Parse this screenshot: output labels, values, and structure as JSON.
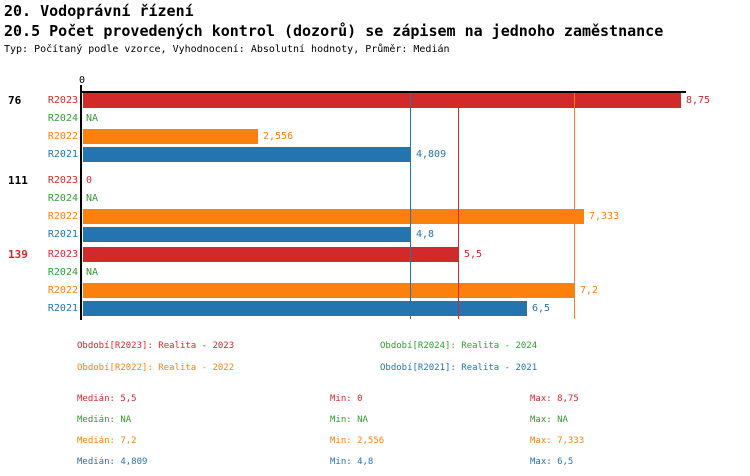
{
  "header": {
    "title": "20. Vodoprávní řízení",
    "subtitle": "20.5 Počet provedených kontrol (dozorů) se zápisem na jednoho zaměstnance",
    "meta": "Typ: Počítaný podle vzorce, Vyhodnocení: Absolutní hodnoty, Průměr: Medián"
  },
  "colors": {
    "r2023": "#d2292b",
    "r2024": "#2e9e2e",
    "r2022": "#fc800e",
    "r2021": "#2474b0",
    "axis": "#000000",
    "group_label_default": "#000000",
    "group_label_highlight": "#d2292b"
  },
  "chart_data": {
    "type": "bar",
    "orientation": "horizontal",
    "x_axis": {
      "origin_label": "0",
      "min": 0,
      "max": 8.75,
      "gridlines": false
    },
    "series_order": [
      "R2023",
      "R2024",
      "R2022",
      "R2021"
    ],
    "groups": [
      {
        "id": "76",
        "highlighted": false,
        "rows": [
          {
            "series": "R2023",
            "value": 8.75,
            "label": "8,75"
          },
          {
            "series": "R2024",
            "value": null,
            "label": "NA"
          },
          {
            "series": "R2022",
            "value": 2.556,
            "label": "2,556"
          },
          {
            "series": "R2021",
            "value": 4.809,
            "label": "4,809"
          }
        ]
      },
      {
        "id": "111",
        "highlighted": false,
        "rows": [
          {
            "series": "R2023",
            "value": 0,
            "label": "0"
          },
          {
            "series": "R2024",
            "value": null,
            "label": "NA"
          },
          {
            "series": "R2022",
            "value": 7.333,
            "label": "7,333"
          },
          {
            "series": "R2021",
            "value": 4.8,
            "label": "4,8"
          }
        ]
      },
      {
        "id": "139",
        "highlighted": true,
        "rows": [
          {
            "series": "R2023",
            "value": 5.5,
            "label": "5,5"
          },
          {
            "series": "R2024",
            "value": null,
            "label": "NA"
          },
          {
            "series": "R2022",
            "value": 7.2,
            "label": "7,2"
          },
          {
            "series": "R2021",
            "value": 6.5,
            "label": "6,5"
          }
        ]
      }
    ],
    "median_lines": [
      {
        "series": "R2023",
        "value": 5.5
      },
      {
        "series": "R2022",
        "value": 7.2
      },
      {
        "series": "R2021",
        "value": 4.809
      }
    ]
  },
  "legend": [
    {
      "series": "R2023",
      "label": "Období[R2023]: Realita - 2023"
    },
    {
      "series": "R2024",
      "label": "Období[R2024]: Realita - 2024"
    },
    {
      "series": "R2022",
      "label": "Období[R2022]: Realita - 2022"
    },
    {
      "series": "R2021",
      "label": "Období[R2021]: Realita - 2021"
    }
  ],
  "stats": [
    {
      "series": "R2023",
      "median": "Medián: 5,5",
      "min": "Min: 0",
      "max": "Max: 8,75"
    },
    {
      "series": "R2024",
      "median": "Medián: NA",
      "min": "Min: NA",
      "max": "Max: NA"
    },
    {
      "series": "R2022",
      "median": "Medián: 7,2",
      "min": "Min: 2,556",
      "max": "Max: 7,333"
    },
    {
      "series": "R2021",
      "median": "Medián: 4,809",
      "min": "Min: 4,8",
      "max": "Max: 6,5"
    }
  ]
}
